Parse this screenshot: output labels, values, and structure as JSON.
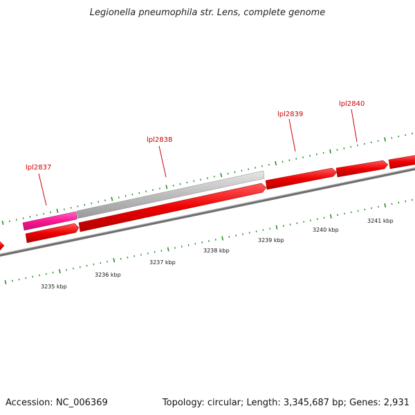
{
  "map": {
    "title": "Legionella pneumophila str. Lens, complete genome",
    "accession": "Accession: NC_006369",
    "summary": "Topology: circular; Length: 3,345,687 bp; Genes: 2,931"
  },
  "genes": [
    {
      "name": "lpl2837"
    },
    {
      "name": "lpl2838"
    },
    {
      "name": "lpl2839"
    },
    {
      "name": "lpl2840"
    }
  ],
  "scale_labels": [
    "3235 kbp",
    "3236 kbp",
    "3237 kbp",
    "3238 kbp",
    "3239 kbp",
    "3240 kbp",
    "3241 kbp"
  ],
  "colors": {
    "cds": "#ff0000",
    "gene": "#b8b8b8",
    "highlight": "#ff1493",
    "backbone": "#888888",
    "ticks": "#228b22",
    "gene_label": "#cc0000"
  }
}
